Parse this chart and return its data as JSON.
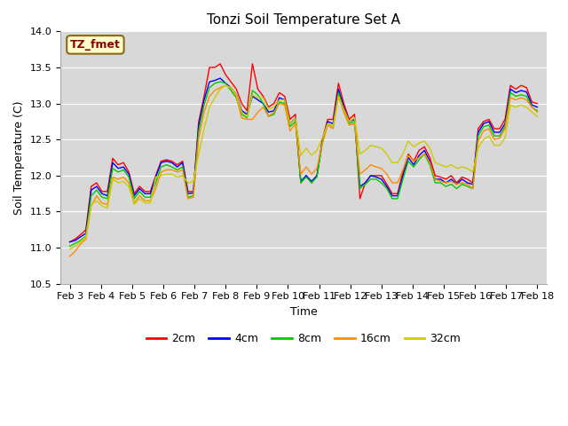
{
  "title": "Tonzi Soil Temperature Set A",
  "xlabel": "Time",
  "ylabel": "Soil Temperature (C)",
  "ylim": [
    10.5,
    14.0
  ],
  "yticks": [
    10.5,
    11.0,
    11.5,
    12.0,
    12.5,
    13.0,
    13.5,
    14.0
  ],
  "x_labels": [
    "Feb 3",
    "Feb 4",
    "Feb 5",
    "Feb 6",
    "Feb 7",
    "Feb 8",
    "Feb 9",
    "Feb 10",
    "Feb 11",
    "Feb 12",
    "Feb 13",
    "Feb 14",
    "Feb 15",
    "Feb 16",
    "Feb 17",
    "Feb 18"
  ],
  "legend_label": "TZ_fmet",
  "series_labels": [
    "2cm",
    "4cm",
    "8cm",
    "16cm",
    "32cm"
  ],
  "series_colors": [
    "#FF0000",
    "#0000FF",
    "#00CC00",
    "#FF8C00",
    "#CCCC00"
  ],
  "fig_facecolor": "#FFFFFF",
  "plot_facecolor": "#D8D8D8",
  "title_fontsize": 11,
  "axis_fontsize": 9,
  "tick_fontsize": 8,
  "legend_fontsize": 9,
  "series_2cm": [
    11.08,
    11.12,
    11.18,
    11.25,
    11.85,
    11.9,
    11.78,
    11.78,
    12.24,
    12.15,
    12.18,
    12.05,
    11.75,
    11.85,
    11.78,
    11.78,
    12.0,
    12.2,
    12.22,
    12.2,
    12.15,
    12.2,
    11.78,
    11.78,
    12.75,
    13.1,
    13.5,
    13.5,
    13.55,
    13.4,
    13.3,
    13.2,
    13.0,
    12.9,
    13.55,
    13.2,
    13.1,
    12.95,
    13.0,
    13.15,
    13.1,
    12.78,
    12.85,
    11.9,
    12.0,
    11.9,
    12.0,
    12.5,
    12.78,
    12.78,
    13.28,
    13.0,
    12.78,
    12.85,
    11.68,
    11.9,
    12.0,
    12.0,
    12.0,
    11.88,
    11.75,
    11.75,
    12.05,
    12.3,
    12.2,
    12.35,
    12.4,
    12.25,
    12.0,
    11.98,
    11.95,
    12.0,
    11.9,
    11.98,
    11.95,
    11.9,
    12.65,
    12.75,
    12.78,
    12.65,
    12.65,
    12.78,
    13.25,
    13.2,
    13.25,
    13.22,
    13.02,
    13.0
  ],
  "series_4cm": [
    11.08,
    11.1,
    11.15,
    11.2,
    11.8,
    11.85,
    11.75,
    11.72,
    12.18,
    12.1,
    12.12,
    12.02,
    11.72,
    11.82,
    11.75,
    11.75,
    11.98,
    12.18,
    12.2,
    12.18,
    12.12,
    12.18,
    11.75,
    11.76,
    12.7,
    13.05,
    13.3,
    13.32,
    13.35,
    13.28,
    13.22,
    13.12,
    12.9,
    12.85,
    13.1,
    13.05,
    13.0,
    12.88,
    12.9,
    13.08,
    13.05,
    12.72,
    12.8,
    11.92,
    12.0,
    11.92,
    12.0,
    12.48,
    12.75,
    12.72,
    13.2,
    12.95,
    12.75,
    12.78,
    11.85,
    11.9,
    12.0,
    11.98,
    11.95,
    11.85,
    11.72,
    11.72,
    12.0,
    12.25,
    12.15,
    12.28,
    12.35,
    12.2,
    11.95,
    11.95,
    11.9,
    11.95,
    11.88,
    11.95,
    11.9,
    11.88,
    12.6,
    12.72,
    12.75,
    12.6,
    12.6,
    12.72,
    13.2,
    13.15,
    13.18,
    13.16,
    12.98,
    12.95
  ],
  "series_8cm": [
    11.02,
    11.06,
    11.1,
    11.16,
    11.72,
    11.8,
    11.7,
    11.68,
    12.1,
    12.05,
    12.08,
    11.98,
    11.68,
    11.78,
    11.7,
    11.7,
    11.9,
    12.12,
    12.15,
    12.12,
    12.08,
    12.12,
    11.7,
    11.72,
    12.62,
    12.98,
    13.22,
    13.28,
    13.3,
    13.28,
    13.18,
    13.08,
    12.85,
    12.8,
    13.18,
    13.12,
    13.0,
    12.82,
    12.85,
    13.02,
    13.0,
    12.68,
    12.75,
    11.9,
    11.98,
    11.9,
    11.98,
    12.45,
    12.72,
    12.68,
    13.15,
    12.9,
    12.72,
    12.75,
    11.82,
    11.88,
    11.95,
    11.95,
    11.9,
    11.82,
    11.68,
    11.68,
    11.95,
    12.2,
    12.12,
    12.22,
    12.3,
    12.15,
    11.9,
    11.9,
    11.85,
    11.88,
    11.82,
    11.88,
    11.85,
    11.82,
    12.55,
    12.68,
    12.7,
    12.55,
    12.55,
    12.68,
    13.15,
    13.1,
    13.12,
    13.1,
    12.95,
    12.9
  ],
  "series_16cm": [
    10.88,
    10.95,
    11.05,
    11.12,
    11.58,
    11.72,
    11.62,
    11.6,
    11.98,
    11.95,
    11.98,
    11.9,
    11.62,
    11.72,
    11.65,
    11.65,
    11.82,
    12.05,
    12.08,
    12.08,
    12.05,
    12.08,
    11.68,
    11.7,
    12.52,
    12.88,
    13.1,
    13.18,
    13.22,
    13.25,
    13.22,
    13.1,
    12.8,
    12.78,
    12.78,
    12.88,
    12.95,
    12.82,
    12.88,
    13.0,
    12.98,
    12.62,
    12.72,
    12.02,
    12.12,
    12.02,
    12.1,
    12.45,
    12.7,
    12.65,
    13.1,
    12.88,
    12.7,
    12.72,
    12.02,
    12.08,
    12.15,
    12.12,
    12.1,
    12.02,
    11.9,
    11.9,
    12.08,
    12.28,
    12.2,
    12.25,
    12.3,
    12.18,
    11.95,
    11.92,
    11.9,
    11.92,
    11.88,
    11.9,
    11.88,
    11.82,
    12.48,
    12.62,
    12.65,
    12.5,
    12.52,
    12.65,
    13.08,
    13.05,
    13.08,
    13.05,
    12.95,
    12.88
  ],
  "series_32cm": [
    10.98,
    11.02,
    11.08,
    11.15,
    11.6,
    11.65,
    11.58,
    11.55,
    11.95,
    11.9,
    11.92,
    11.85,
    11.6,
    11.68,
    11.62,
    11.62,
    11.98,
    12.0,
    12.02,
    12.02,
    11.98,
    12.0,
    11.9,
    11.92,
    12.3,
    12.65,
    12.95,
    13.08,
    13.2,
    13.25,
    13.22,
    13.12,
    12.88,
    12.82,
    13.12,
    13.08,
    13.08,
    12.92,
    12.95,
    13.05,
    13.05,
    12.72,
    12.8,
    12.28,
    12.38,
    12.28,
    12.35,
    12.52,
    12.72,
    12.68,
    13.1,
    12.92,
    12.75,
    12.8,
    12.3,
    12.35,
    12.42,
    12.4,
    12.38,
    12.3,
    12.18,
    12.18,
    12.3,
    12.48,
    12.4,
    12.45,
    12.48,
    12.38,
    12.18,
    12.15,
    12.12,
    12.15,
    12.1,
    12.12,
    12.1,
    12.05,
    12.38,
    12.5,
    12.55,
    12.42,
    12.42,
    12.52,
    12.98,
    12.95,
    12.98,
    12.95,
    12.88,
    12.82
  ]
}
